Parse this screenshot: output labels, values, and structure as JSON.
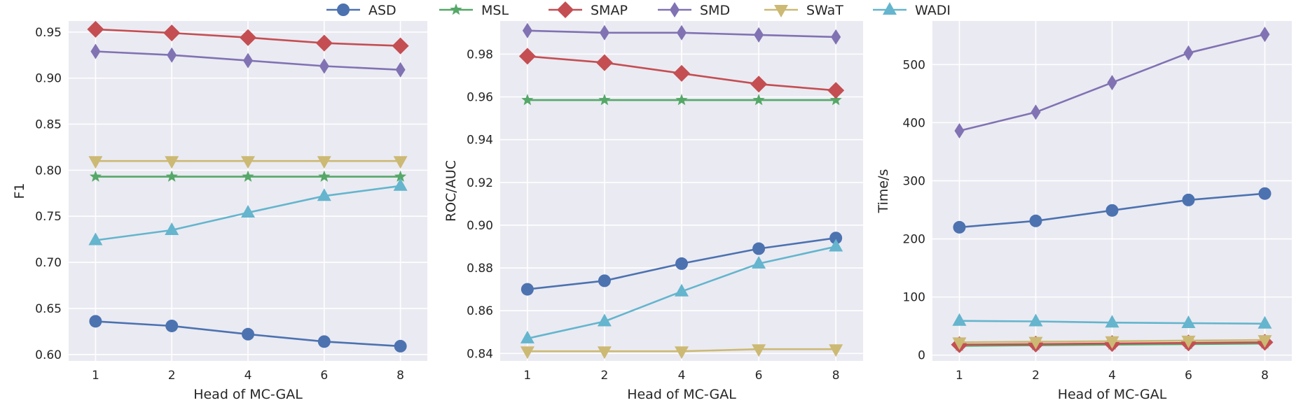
{
  "legend": [
    "ASD",
    "MSL",
    "SMAP",
    "SMD",
    "SWaT",
    "WADI"
  ],
  "colors": {
    "ASD": "#4c72b0",
    "MSL": "#55a868",
    "SMAP": "#c44e52",
    "SMD": "#8172b3",
    "SWaT": "#ccb974",
    "WADI": "#64b5cd",
    "plot_bg": "#eaeaf2",
    "grid": "#ffffff"
  },
  "markers": {
    "ASD": "circle",
    "MSL": "star",
    "SMAP": "diamond",
    "SMD": "thin-diamond",
    "SWaT": "triangle-down",
    "WADI": "triangle-up"
  },
  "chart_data": [
    {
      "type": "line",
      "title": "",
      "xlabel": "Head of MC-GAL",
      "ylabel": "F1",
      "x_ticks": [
        "1",
        "2",
        "4",
        "6",
        "8"
      ],
      "ylim": [
        0.593,
        0.962
      ],
      "yticks": [
        0.6,
        0.65,
        0.7,
        0.75,
        0.8,
        0.85,
        0.9,
        0.95
      ],
      "ytick_labels": [
        "0.60",
        "0.65",
        "0.70",
        "0.75",
        "0.80",
        "0.85",
        "0.90",
        "0.95"
      ],
      "grid": true,
      "series": [
        {
          "name": "ASD",
          "values": [
            0.636,
            0.631,
            0.622,
            0.614,
            0.609
          ]
        },
        {
          "name": "MSL",
          "values": [
            0.793,
            0.793,
            0.793,
            0.793,
            0.793
          ]
        },
        {
          "name": "SMAP",
          "values": [
            0.953,
            0.949,
            0.944,
            0.938,
            0.935
          ]
        },
        {
          "name": "SMD",
          "values": [
            0.929,
            0.925,
            0.919,
            0.913,
            0.909
          ]
        },
        {
          "name": "SWaT",
          "values": [
            0.81,
            0.81,
            0.81,
            0.81,
            0.81
          ]
        },
        {
          "name": "WADI",
          "values": [
            0.724,
            0.735,
            0.754,
            0.772,
            0.783
          ]
        }
      ]
    },
    {
      "type": "line",
      "title": "",
      "xlabel": "Head of MC-GAL",
      "ylabel": "ROC/AUC",
      "x_ticks": [
        "1",
        "2",
        "4",
        "6",
        "8"
      ],
      "ylim": [
        0.8365,
        0.9955
      ],
      "yticks": [
        0.84,
        0.86,
        0.88,
        0.9,
        0.92,
        0.94,
        0.96,
        0.98
      ],
      "ytick_labels": [
        "0.84",
        "0.86",
        "0.88",
        "0.90",
        "0.92",
        "0.94",
        "0.96",
        "0.98"
      ],
      "grid": true,
      "series": [
        {
          "name": "ASD",
          "values": [
            0.87,
            0.874,
            0.882,
            0.889,
            0.894
          ]
        },
        {
          "name": "MSL",
          "values": [
            0.9585,
            0.9585,
            0.9585,
            0.9585,
            0.9585
          ]
        },
        {
          "name": "SMAP",
          "values": [
            0.979,
            0.976,
            0.971,
            0.966,
            0.963
          ]
        },
        {
          "name": "SMD",
          "values": [
            0.991,
            0.99,
            0.99,
            0.989,
            0.988
          ]
        },
        {
          "name": "SWaT",
          "values": [
            0.841,
            0.841,
            0.841,
            0.842,
            0.842
          ]
        },
        {
          "name": "WADI",
          "values": [
            0.847,
            0.855,
            0.869,
            0.882,
            0.89
          ]
        }
      ]
    },
    {
      "type": "line",
      "title": "",
      "xlabel": "Head of MC-GAL",
      "ylabel": "Time/s",
      "x_ticks": [
        "1",
        "2",
        "4",
        "6",
        "8"
      ],
      "ylim": [
        -10,
        575
      ],
      "yticks": [
        0,
        100,
        200,
        300,
        400,
        500
      ],
      "ytick_labels": [
        "0",
        "100",
        "200",
        "300",
        "400",
        "500"
      ],
      "grid": true,
      "series": [
        {
          "name": "ASD",
          "values": [
            220,
            231,
            249,
            267,
            278
          ]
        },
        {
          "name": "MSL",
          "values": [
            16,
            17,
            18,
            19,
            20
          ]
        },
        {
          "name": "SMAP",
          "values": [
            18,
            19,
            20,
            21,
            22
          ]
        },
        {
          "name": "SMD",
          "values": [
            386,
            418,
            469,
            520,
            552
          ]
        },
        {
          "name": "SWaT",
          "values": [
            22,
            23,
            24,
            25,
            26
          ]
        },
        {
          "name": "WADI",
          "values": [
            59,
            58,
            56,
            55,
            54
          ]
        }
      ]
    }
  ]
}
